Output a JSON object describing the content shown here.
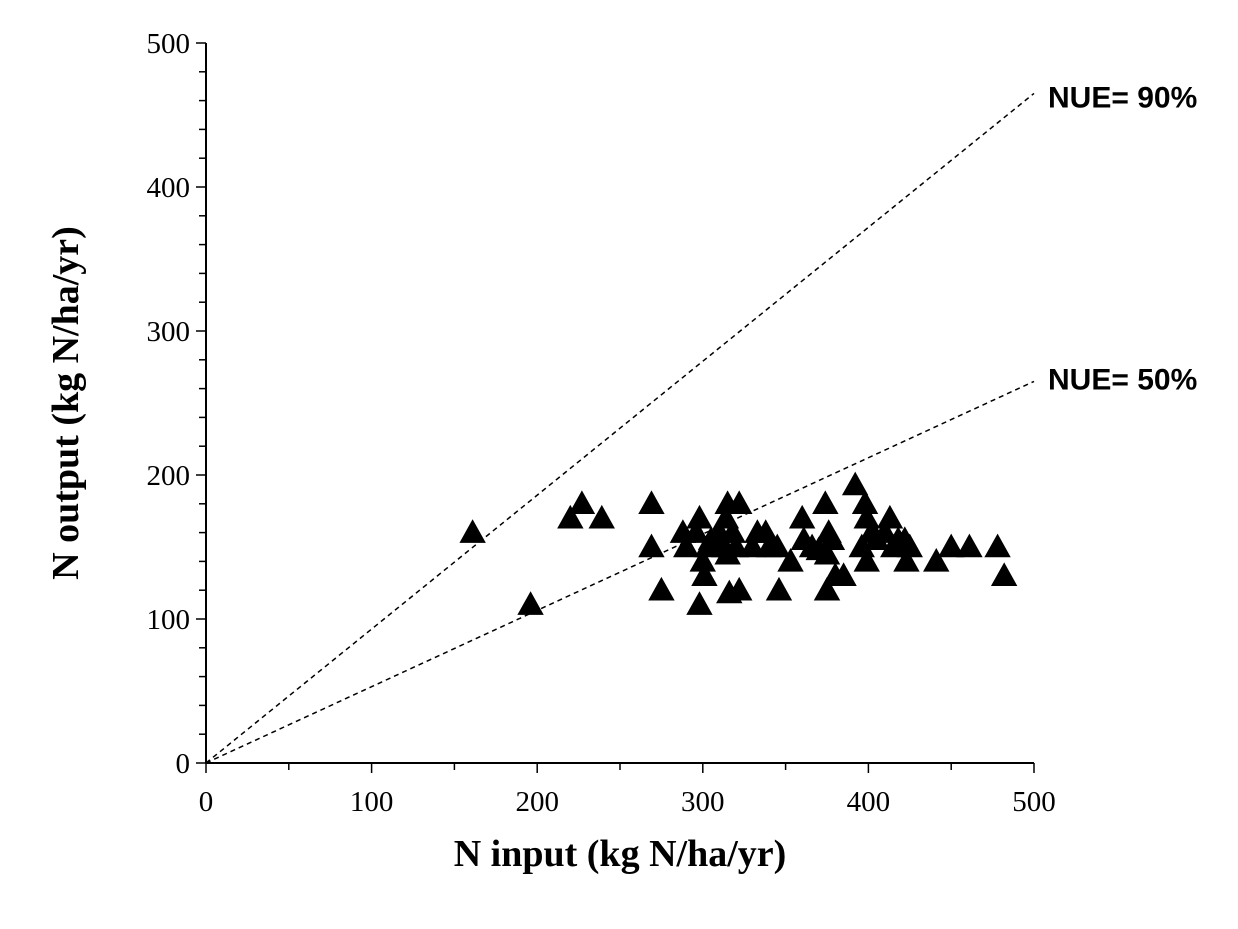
{
  "chart_data": {
    "type": "scatter",
    "title": "",
    "xlabel": "N input (kg N/ha/yr)",
    "ylabel": "N output (kg N/ha/yr)",
    "xlim": [
      0,
      500
    ],
    "ylim": [
      0,
      500
    ],
    "x_ticks": [
      0,
      100,
      200,
      300,
      400,
      500
    ],
    "y_ticks": [
      0,
      100,
      200,
      300,
      400,
      500
    ],
    "x_tick_labels": [
      "0",
      "100",
      "200",
      "300",
      "400",
      "500"
    ],
    "y_tick_labels": [
      "0",
      "100",
      "200",
      "300",
      "400",
      "500"
    ],
    "minor_tick_step": 20,
    "grid": false,
    "marker": "triangle",
    "reference_lines": [
      {
        "label": "NUE= 90%",
        "slope": 0.93
      },
      {
        "label": "NUE= 50%",
        "slope": 0.53
      }
    ],
    "points": [
      {
        "x": 161,
        "y": 160
      },
      {
        "x": 196,
        "y": 110
      },
      {
        "x": 220,
        "y": 170
      },
      {
        "x": 227,
        "y": 180
      },
      {
        "x": 239,
        "y": 170
      },
      {
        "x": 269,
        "y": 180
      },
      {
        "x": 269,
        "y": 150
      },
      {
        "x": 275,
        "y": 120
      },
      {
        "x": 288,
        "y": 160
      },
      {
        "x": 290,
        "y": 150
      },
      {
        "x": 296,
        "y": 160
      },
      {
        "x": 298,
        "y": 170
      },
      {
        "x": 298,
        "y": 110
      },
      {
        "x": 300,
        "y": 140
      },
      {
        "x": 301,
        "y": 130
      },
      {
        "x": 303,
        "y": 150
      },
      {
        "x": 305,
        "y": 155
      },
      {
        "x": 310,
        "y": 160
      },
      {
        "x": 313,
        "y": 150
      },
      {
        "x": 314,
        "y": 170
      },
      {
        "x": 315,
        "y": 180
      },
      {
        "x": 315,
        "y": 145
      },
      {
        "x": 316,
        "y": 118
      },
      {
        "x": 318,
        "y": 160
      },
      {
        "x": 320,
        "y": 150
      },
      {
        "x": 322,
        "y": 180
      },
      {
        "x": 322,
        "y": 120
      },
      {
        "x": 330,
        "y": 150
      },
      {
        "x": 333,
        "y": 160
      },
      {
        "x": 338,
        "y": 160
      },
      {
        "x": 340,
        "y": 150
      },
      {
        "x": 345,
        "y": 150
      },
      {
        "x": 346,
        "y": 120
      },
      {
        "x": 353,
        "y": 140
      },
      {
        "x": 360,
        "y": 170
      },
      {
        "x": 361,
        "y": 155
      },
      {
        "x": 366,
        "y": 150
      },
      {
        "x": 370,
        "y": 148
      },
      {
        "x": 374,
        "y": 180
      },
      {
        "x": 375,
        "y": 145
      },
      {
        "x": 375,
        "y": 120
      },
      {
        "x": 376,
        "y": 160
      },
      {
        "x": 378,
        "y": 155
      },
      {
        "x": 380,
        "y": 130
      },
      {
        "x": 385,
        "y": 130
      },
      {
        "x": 392,
        "y": 193
      },
      {
        "x": 396,
        "y": 150
      },
      {
        "x": 398,
        "y": 180
      },
      {
        "x": 399,
        "y": 140
      },
      {
        "x": 399,
        "y": 170
      },
      {
        "x": 402,
        "y": 160
      },
      {
        "x": 405,
        "y": 155
      },
      {
        "x": 410,
        "y": 160
      },
      {
        "x": 413,
        "y": 170
      },
      {
        "x": 415,
        "y": 150
      },
      {
        "x": 418,
        "y": 155
      },
      {
        "x": 422,
        "y": 155
      },
      {
        "x": 423,
        "y": 140
      },
      {
        "x": 425,
        "y": 150
      },
      {
        "x": 441,
        "y": 140
      },
      {
        "x": 450,
        "y": 150
      },
      {
        "x": 461,
        "y": 150
      },
      {
        "x": 478,
        "y": 150
      },
      {
        "x": 482,
        "y": 130
      }
    ]
  }
}
